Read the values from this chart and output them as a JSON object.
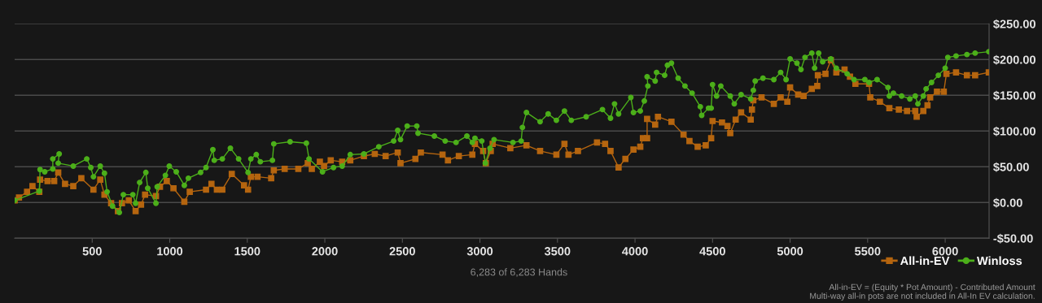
{
  "chart_data": {
    "type": "line",
    "xlim": [
      0,
      6283
    ],
    "xticks": [
      500,
      1000,
      1500,
      2000,
      2500,
      3000,
      3500,
      4000,
      4500,
      5000,
      5500,
      6000
    ],
    "ylim": [
      -50,
      250
    ],
    "yticks": [
      {
        "value": -50,
        "label": "-$50.00"
      },
      {
        "value": 0,
        "label": "$0.00"
      },
      {
        "value": 50,
        "label": "$50.00"
      },
      {
        "value": 100,
        "label": "$100.00"
      },
      {
        "value": 150,
        "label": "$150.00"
      },
      {
        "value": 200,
        "label": "$200.00"
      },
      {
        "value": 250,
        "label": "$250.00"
      }
    ],
    "grid": "y",
    "legend": "bottom right",
    "annotations": [
      "6,283 of 6,283 Hands",
      "All-in-EV = (Equity * Pot Amount) - Contributed Amount\nMulti-way all-in pots are not included in All-In EV calculation."
    ],
    "series": [
      {
        "name": "All-in-EV",
        "color": "#b5650f",
        "marker": "square",
        "x": [
          0,
          28,
          80,
          115,
          159,
          164,
          212,
          255,
          281,
          325,
          378,
          430,
          508,
          552,
          579,
          622,
          666,
          692,
          736,
          780,
          815,
          841,
          911,
          937,
          981,
          1024,
          1094,
          1129,
          1234,
          1269,
          1304,
          1339,
          1400,
          1479,
          1505,
          1523,
          1566,
          1654,
          1671,
          1741,
          1829,
          1890,
          1916,
          1968,
          1995,
          2038,
          2112,
          2164,
          2252,
          2322,
          2392,
          2470,
          2488,
          2584,
          2619,
          2759,
          2794,
          2864,
          2951,
          2968,
          3021,
          3038,
          3070,
          3082,
          3196,
          3300,
          3388,
          3493,
          3545,
          3571,
          3632,
          3755,
          3807,
          3842,
          3894,
          3938,
          3990,
          4034,
          4051,
          4078,
          4078,
          4130,
          4148,
          4235,
          4313,
          4351,
          4404,
          4456,
          4491,
          4500,
          4561,
          4596,
          4614,
          4649,
          4684,
          4746,
          4754,
          4763,
          4816,
          4895,
          4939,
          4982,
          5000,
          5052,
          5087,
          5140,
          5175,
          5179,
          5228,
          5263,
          5298,
          5351,
          5386,
          5421,
          5509,
          5517,
          5579,
          5640,
          5701,
          5754,
          5807,
          5816,
          5859,
          5886,
          5903,
          5947,
          5991,
          6008,
          6070,
          6140,
          6193,
          6281
        ],
        "values": [
          3,
          7,
          15,
          23,
          15,
          32,
          30,
          30,
          42,
          26,
          23,
          34,
          18,
          32,
          11,
          -1,
          -12,
          -1,
          3,
          -12,
          -3,
          11,
          9,
          22,
          30,
          20,
          1,
          15,
          18,
          26,
          18,
          18,
          40,
          24,
          18,
          36,
          36,
          34,
          45,
          47,
          47,
          55,
          47,
          57,
          51,
          59,
          57,
          59,
          65,
          68,
          65,
          70,
          55,
          61,
          70,
          67,
          59,
          65,
          67,
          82,
          72,
          55,
          72,
          82,
          76,
          80,
          72,
          67,
          82,
          67,
          72,
          84,
          82,
          72,
          49,
          61,
          74,
          78,
          90,
          90,
          117,
          109,
          120,
          113,
          95,
          86,
          78,
          80,
          90,
          114,
          112,
          107,
          97,
          116,
          126,
          116,
          130,
          143,
          147,
          138,
          147,
          141,
          161,
          151,
          149,
          159,
          163,
          178,
          180,
          199,
          182,
          186,
          176,
          166,
          166,
          147,
          141,
          132,
          130,
          128,
          128,
          120,
          128,
          136,
          147,
          155,
          155,
          180,
          182,
          178,
          178,
          182
        ]
      },
      {
        "name": "Winloss",
        "color": "#4caf1a",
        "marker": "circle",
        "x": [
          0,
          159,
          164,
          194,
          246,
          246,
          287,
          281,
          378,
          465,
          491,
          508,
          552,
          579,
          596,
          631,
          675,
          701,
          762,
          780,
          806,
          846,
          858,
          911,
          919,
          972,
          997,
          1042,
          1094,
          1120,
          1199,
          1234,
          1278,
          1287,
          1339,
          1391,
          1444,
          1505,
          1523,
          1558,
          1584,
          1662,
          1671,
          1776,
          1881,
          1898,
          1985,
          2056,
          2112,
          2164,
          2252,
          2348,
          2444,
          2470,
          2488,
          2531,
          2593,
          2601,
          2706,
          2776,
          2846,
          2916,
          2951,
          2968,
          3012,
          3035,
          3065,
          3091,
          3213,
          3266,
          3274,
          3300,
          3388,
          3440,
          3493,
          3545,
          3589,
          3685,
          3790,
          3842,
          3868,
          3894,
          3973,
          3990,
          4034,
          4060,
          4083,
          4078,
          4130,
          4139,
          4191,
          4209,
          4235,
          4278,
          4322,
          4368,
          4421,
          4430,
          4474,
          4491,
          4500,
          4526,
          4553,
          4614,
          4640,
          4684,
          4746,
          4763,
          4775,
          4825,
          4895,
          4939,
          4974,
          5000,
          5044,
          5070,
          5096,
          5140,
          5158,
          5184,
          5210,
          5263,
          5298,
          5368,
          5412,
          5482,
          5509,
          5561,
          5631,
          5640,
          5666,
          5719,
          5772,
          5807,
          5824,
          5859,
          5877,
          5912,
          5956,
          6000,
          6017,
          6070,
          6140,
          6193,
          6281
        ],
        "values": [
          3,
          16,
          46,
          43,
          47,
          61,
          68,
          55,
          51,
          61,
          49,
          36,
          51,
          41,
          15,
          -5,
          -14,
          11,
          11,
          -1,
          28,
          42,
          20,
          -1,
          22,
          38,
          51,
          43,
          24,
          34,
          42,
          49,
          74,
          59,
          61,
          76,
          61,
          42,
          61,
          67,
          57,
          59,
          82,
          85,
          83,
          61,
          43,
          49,
          51,
          67,
          68,
          78,
          86,
          101,
          88,
          107,
          107,
          97,
          93,
          86,
          84,
          93,
          84,
          90,
          86,
          55,
          76,
          88,
          84,
          86,
          105,
          126,
          113,
          124,
          115,
          128,
          115,
          120,
          130,
          118,
          138,
          124,
          147,
          126,
          128,
          142,
          163,
          176,
          170,
          182,
          178,
          192,
          195,
          174,
          163,
          153,
          134,
          122,
          132,
          132,
          165,
          149,
          163,
          149,
          138,
          151,
          145,
          157,
          170,
          174,
          172,
          182,
          172,
          201,
          195,
          186,
          203,
          209,
          188,
          209,
          197,
          201,
          188,
          180,
          172,
          172,
          168,
          172,
          161,
          149,
          153,
          149,
          145,
          149,
          138,
          149,
          159,
          168,
          178,
          188,
          203,
          205,
          207,
          209,
          211
        ]
      }
    ]
  }
}
